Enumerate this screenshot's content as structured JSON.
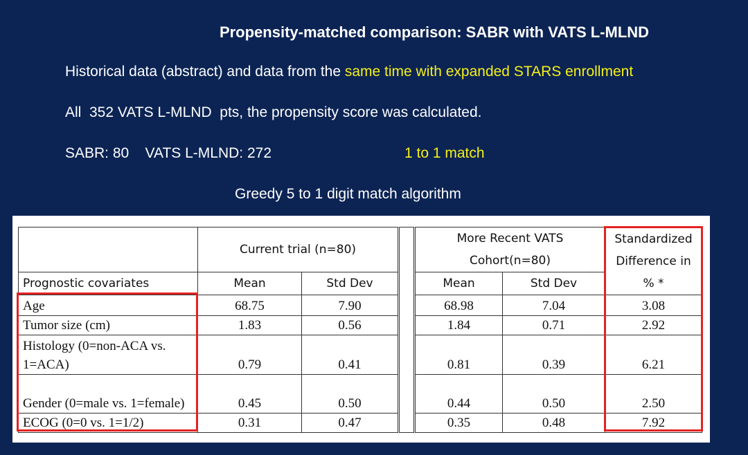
{
  "title": "Propensity-matched comparison:  SABR with VATS L-MLND",
  "lines": [
    {
      "text": "Historical data (abstract) and data from the ",
      "highlight": "same time with expanded STARS enrollment"
    },
    {
      "text": "All  352 VATS L-MLND  pts, the propensity score was calculated."
    },
    {
      "text": "SABR: 80    VATS L-MLND: 272",
      "highlight": "1 to 1 match"
    },
    {
      "text": "Greedy 5 to 1 digit match algorithm"
    }
  ],
  "table": {
    "group_headers": [
      "Current trial (n=80)",
      "More Recent VATS Cohort(n=80)",
      "Standardized Difference in % *"
    ],
    "headers": [
      "Prognostic covariates",
      "Mean",
      "Std Dev",
      "Mean",
      "Std Dev"
    ],
    "rows": [
      [
        "Age",
        "68.75",
        "7.90",
        "68.98",
        "7.04",
        "3.08"
      ],
      [
        "Tumor size (cm)",
        "1.83",
        "0.56",
        "1.84",
        "0.71",
        "2.92"
      ],
      [
        "Histology (0=non-ACA vs. 1=ACA)",
        "0.79",
        "0.41",
        "0.81",
        "0.39",
        "6.21"
      ],
      [
        "Gender (0=male vs. 1=female)",
        "0.45",
        "0.50",
        "0.44",
        "0.50",
        "2.50"
      ],
      [
        "ECOG (0=0 vs. 1=1/2)",
        "0.31",
        "0.47",
        "0.35",
        "0.48",
        "7.92"
      ]
    ]
  }
}
